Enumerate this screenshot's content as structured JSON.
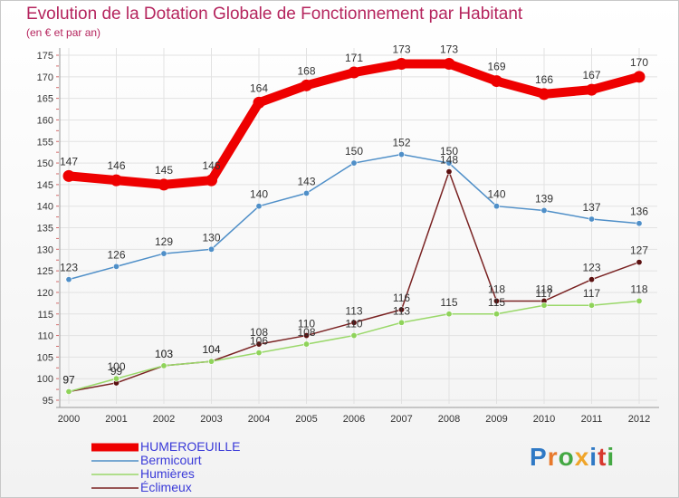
{
  "title": "Evolution de la Dotation Globale de Fonctionnement par Habitant",
  "subtitle": "(en € et par an)",
  "logo_text": "Proxiti",
  "colors": {
    "title": "#b5255e",
    "legend_text": "#3a3ad8",
    "grid": "#e2e2e2",
    "axis": "#999999"
  },
  "chart_data": {
    "type": "line",
    "title": "Evolution de la Dotation Globale de Fonctionnement par Habitant",
    "subtitle": "(en € et par an)",
    "x": [
      "2000",
      "2001",
      "2002",
      "2003",
      "2004",
      "2005",
      "2006",
      "2007",
      "2008",
      "2009",
      "2010",
      "2011",
      "2012"
    ],
    "ylim": [
      95,
      175
    ],
    "yticks": [
      95,
      100,
      105,
      110,
      115,
      120,
      125,
      130,
      135,
      140,
      145,
      150,
      155,
      160,
      165,
      170,
      175
    ],
    "grid": true,
    "legend_position": "bottom-left",
    "series": [
      {
        "name": "HUMEROEUILLE",
        "color": "#ee0000",
        "values": [
          147,
          146,
          145,
          146,
          164,
          168,
          171,
          173,
          173,
          169,
          166,
          167,
          170
        ]
      },
      {
        "name": "Bermicourt",
        "color": "#4f8fc8",
        "values": [
          123,
          126,
          129,
          130,
          140,
          143,
          150,
          152,
          150,
          140,
          139,
          137,
          136
        ]
      },
      {
        "name": "Humières",
        "color": "#9ad86a",
        "values": [
          97,
          100,
          103,
          104,
          106,
          108,
          110,
          113,
          115,
          115,
          117,
          117,
          118
        ]
      },
      {
        "name": "Éclimeux",
        "color": "#7a2323",
        "values": [
          97,
          99,
          103,
          104,
          108,
          110,
          113,
          116,
          148,
          118,
          118,
          123,
          127
        ]
      }
    ]
  }
}
